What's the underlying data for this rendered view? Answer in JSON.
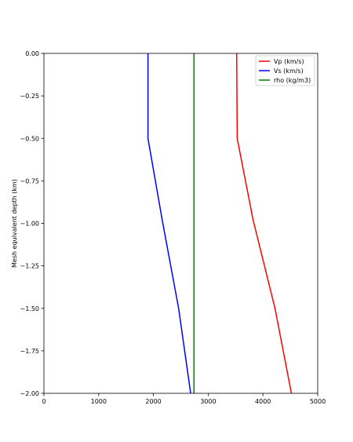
{
  "chart_data": {
    "type": "line",
    "title": "",
    "xlabel": "",
    "ylabel": "Mesh equivalent depth (km)",
    "xlim": [
      0,
      5000
    ],
    "ylim": [
      -2.0,
      0.0
    ],
    "xticks": [
      0,
      1000,
      2000,
      3000,
      4000,
      5000
    ],
    "xtick_labels": [
      "0",
      "1000",
      "2000",
      "3000",
      "4000",
      "5000"
    ],
    "yticks": [
      0.0,
      -0.25,
      -0.5,
      -0.75,
      -1.0,
      -1.25,
      -1.5,
      -1.75,
      -2.0
    ],
    "ytick_labels": [
      "0.00",
      "−0.25",
      "−0.50",
      "−0.75",
      "−1.00",
      "−1.25",
      "−1.50",
      "−1.75",
      "−2.00"
    ],
    "grid": false,
    "legend_position": "top-right",
    "series": [
      {
        "name": "Vp (km/s)",
        "color": "#ff0000",
        "x": [
          3520,
          3530,
          3820,
          4220,
          4520
        ],
        "y": [
          0.0,
          -0.5,
          -0.98,
          -1.5,
          -2.0
        ]
      },
      {
        "name": "Vs (km/s)",
        "color": "#0000ff",
        "x": [
          1900,
          1900,
          2160,
          2460,
          2680
        ],
        "y": [
          0.0,
          -0.5,
          -0.98,
          -1.5,
          -2.0
        ]
      },
      {
        "name": "rho (kg/m3)",
        "color": "#008000",
        "x": [
          2740,
          2740
        ],
        "y": [
          0.0,
          -2.0
        ]
      }
    ]
  }
}
